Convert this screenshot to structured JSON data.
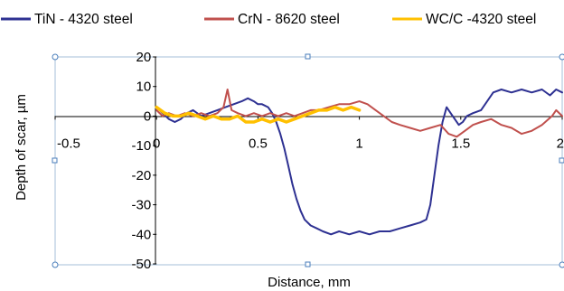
{
  "chart_data": {
    "type": "line",
    "title": "",
    "xlabel": "Distance,  mm",
    "ylabel": "Depth of scar,  µm",
    "xlim": [
      -0.5,
      2
    ],
    "ylim": [
      -50,
      20
    ],
    "x_ticks": [
      "-0.5",
      "0",
      "0.5",
      "1",
      "1.5",
      "2"
    ],
    "y_ticks": [
      "20",
      "10",
      "0",
      "-10",
      "-20",
      "-30",
      "-40",
      "-50"
    ],
    "grid": false,
    "legend_position": "top",
    "series": [
      {
        "name": "TiN - 4320 steel",
        "color": "#2e3192",
        "points": [
          [
            0,
            3
          ],
          [
            0.03,
            1
          ],
          [
            0.06,
            -1
          ],
          [
            0.09,
            -2
          ],
          [
            0.12,
            -1
          ],
          [
            0.15,
            1
          ],
          [
            0.18,
            2
          ],
          [
            0.22,
            0
          ],
          [
            0.26,
            1
          ],
          [
            0.3,
            2
          ],
          [
            0.34,
            3
          ],
          [
            0.38,
            4
          ],
          [
            0.42,
            5
          ],
          [
            0.45,
            6
          ],
          [
            0.48,
            5
          ],
          [
            0.5,
            4
          ],
          [
            0.52,
            4
          ],
          [
            0.55,
            3
          ],
          [
            0.57,
            1
          ],
          [
            0.59,
            -2
          ],
          [
            0.61,
            -6
          ],
          [
            0.63,
            -11
          ],
          [
            0.65,
            -17
          ],
          [
            0.67,
            -23
          ],
          [
            0.69,
            -28
          ],
          [
            0.71,
            -32
          ],
          [
            0.73,
            -35
          ],
          [
            0.76,
            -37
          ],
          [
            0.79,
            -38
          ],
          [
            0.82,
            -39
          ],
          [
            0.86,
            -40
          ],
          [
            0.9,
            -39
          ],
          [
            0.95,
            -40
          ],
          [
            1.0,
            -39
          ],
          [
            1.05,
            -40
          ],
          [
            1.1,
            -39
          ],
          [
            1.15,
            -39
          ],
          [
            1.2,
            -38
          ],
          [
            1.25,
            -37
          ],
          [
            1.3,
            -36
          ],
          [
            1.33,
            -35
          ],
          [
            1.35,
            -30
          ],
          [
            1.37,
            -20
          ],
          [
            1.39,
            -10
          ],
          [
            1.41,
            -2
          ],
          [
            1.43,
            3
          ],
          [
            1.45,
            1
          ],
          [
            1.47,
            -1
          ],
          [
            1.49,
            -3
          ],
          [
            1.51,
            -2
          ],
          [
            1.53,
            0
          ],
          [
            1.56,
            1
          ],
          [
            1.6,
            2
          ],
          [
            1.63,
            5
          ],
          [
            1.66,
            8
          ],
          [
            1.7,
            9
          ],
          [
            1.75,
            8
          ],
          [
            1.8,
            9
          ],
          [
            1.85,
            8
          ],
          [
            1.9,
            9
          ],
          [
            1.94,
            7
          ],
          [
            1.97,
            9
          ],
          [
            2.0,
            8
          ]
        ]
      },
      {
        "name": "CrN - 8620 steel",
        "color": "#c0504d",
        "points": [
          [
            0,
            2
          ],
          [
            0.03,
            0
          ],
          [
            0.06,
            1
          ],
          [
            0.1,
            0
          ],
          [
            0.14,
            1
          ],
          [
            0.18,
            0
          ],
          [
            0.22,
            1
          ],
          [
            0.26,
            0
          ],
          [
            0.3,
            1
          ],
          [
            0.33,
            3
          ],
          [
            0.35,
            9
          ],
          [
            0.37,
            2
          ],
          [
            0.4,
            1
          ],
          [
            0.44,
            0
          ],
          [
            0.48,
            1
          ],
          [
            0.52,
            0
          ],
          [
            0.56,
            1
          ],
          [
            0.6,
            0
          ],
          [
            0.64,
            1
          ],
          [
            0.68,
            0
          ],
          [
            0.72,
            1
          ],
          [
            0.76,
            2
          ],
          [
            0.8,
            2
          ],
          [
            0.85,
            3
          ],
          [
            0.9,
            4
          ],
          [
            0.95,
            4
          ],
          [
            1.0,
            5
          ],
          [
            1.04,
            4
          ],
          [
            1.08,
            2
          ],
          [
            1.12,
            0
          ],
          [
            1.16,
            -2
          ],
          [
            1.2,
            -3
          ],
          [
            1.25,
            -4
          ],
          [
            1.3,
            -5
          ],
          [
            1.35,
            -4
          ],
          [
            1.4,
            -3
          ],
          [
            1.44,
            -6
          ],
          [
            1.48,
            -7
          ],
          [
            1.52,
            -5
          ],
          [
            1.56,
            -3
          ],
          [
            1.6,
            -2
          ],
          [
            1.65,
            -1
          ],
          [
            1.7,
            -3
          ],
          [
            1.75,
            -4
          ],
          [
            1.8,
            -6
          ],
          [
            1.85,
            -5
          ],
          [
            1.9,
            -3
          ],
          [
            1.95,
            0
          ],
          [
            1.97,
            2
          ],
          [
            2.0,
            0
          ]
        ]
      },
      {
        "name": "WC/C -4320 steel",
        "color": "#ffc000",
        "points": [
          [
            0,
            3
          ],
          [
            0.04,
            1
          ],
          [
            0.08,
            0
          ],
          [
            0.12,
            0
          ],
          [
            0.16,
            1
          ],
          [
            0.2,
            0
          ],
          [
            0.24,
            -1
          ],
          [
            0.28,
            0
          ],
          [
            0.32,
            -1
          ],
          [
            0.36,
            -1
          ],
          [
            0.4,
            0
          ],
          [
            0.44,
            -2
          ],
          [
            0.48,
            -2
          ],
          [
            0.52,
            -1
          ],
          [
            0.56,
            -2
          ],
          [
            0.6,
            -1
          ],
          [
            0.64,
            -2
          ],
          [
            0.68,
            -1
          ],
          [
            0.72,
            0
          ],
          [
            0.76,
            1
          ],
          [
            0.8,
            2
          ],
          [
            0.84,
            2
          ],
          [
            0.88,
            3
          ],
          [
            0.92,
            2
          ],
          [
            0.96,
            3
          ],
          [
            1.0,
            2
          ]
        ]
      }
    ]
  }
}
